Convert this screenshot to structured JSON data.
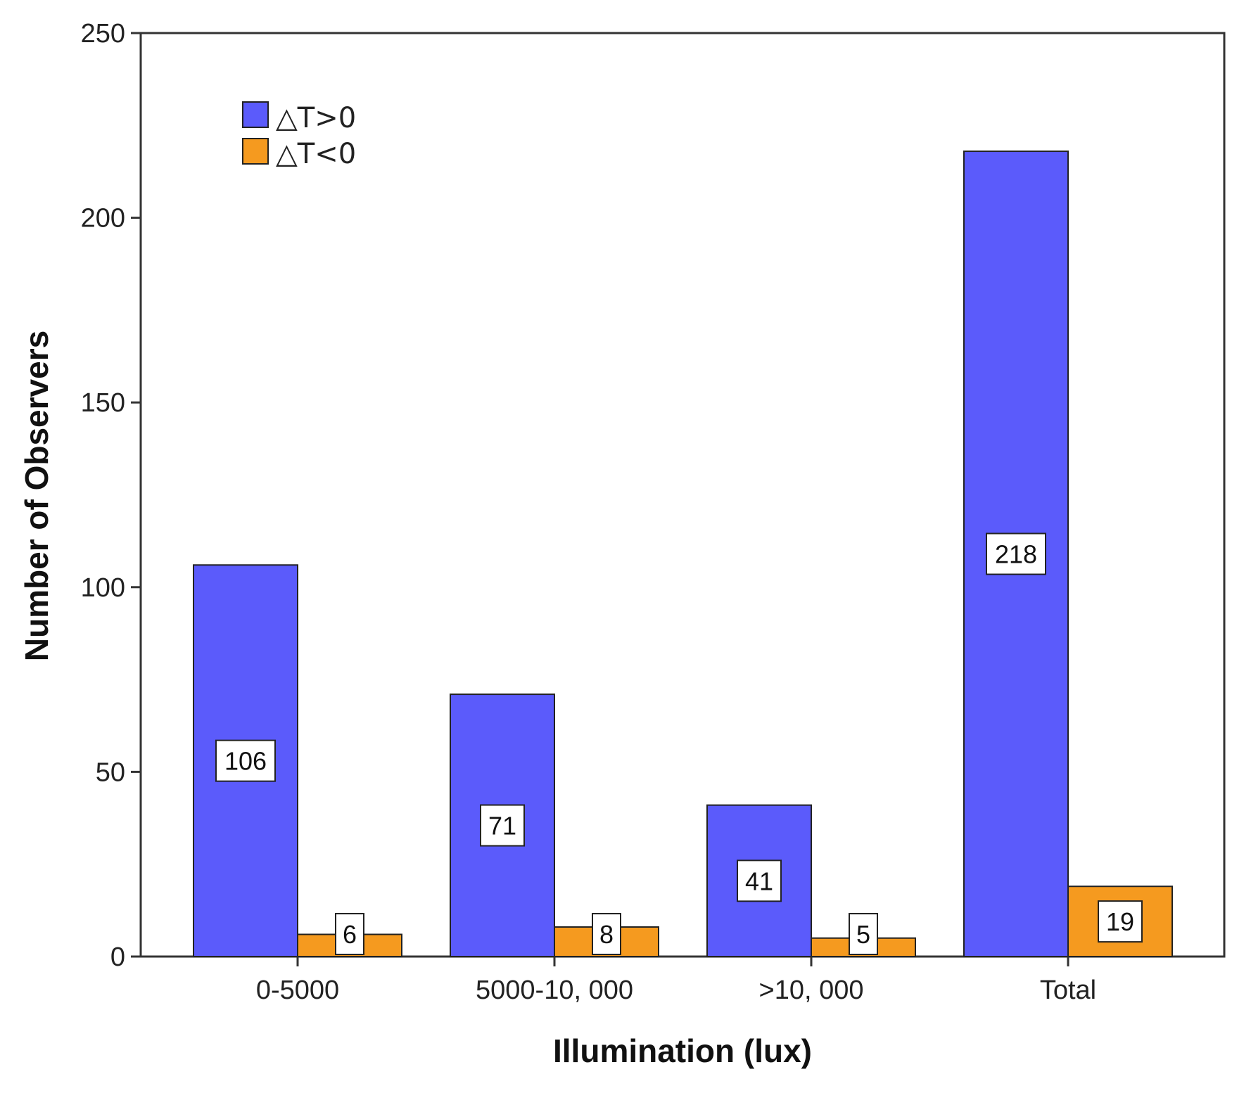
{
  "chart_data": {
    "type": "bar",
    "title": "",
    "xlabel": "Illumination (lux)",
    "ylabel": "Number of Observers",
    "categories": [
      "0-5000",
      "5000-10, 000",
      ">10, 000",
      "Total"
    ],
    "series": [
      {
        "name": "△T>0",
        "color": "#5b5bfb",
        "values": [
          106,
          71,
          41,
          218
        ]
      },
      {
        "name": "△T<0",
        "color": "#f59a1f",
        "values": [
          6,
          8,
          5,
          19
        ]
      }
    ],
    "ylim": [
      0,
      250
    ],
    "yticks": [
      0,
      50,
      100,
      150,
      200,
      250
    ],
    "grid": false,
    "legend_position": "top-left"
  }
}
